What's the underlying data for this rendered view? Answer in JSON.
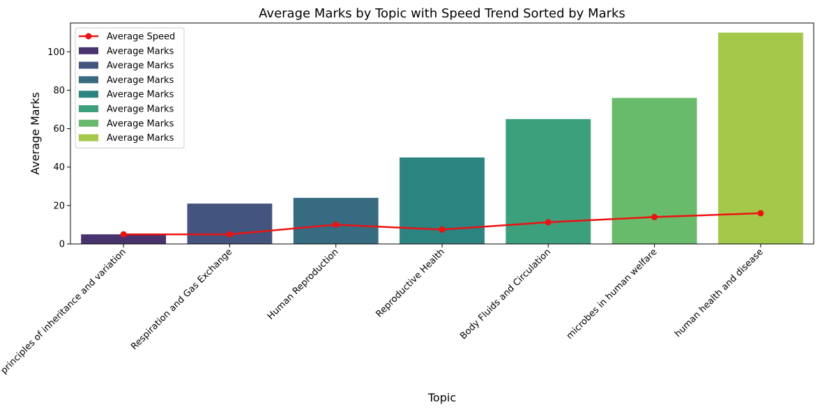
{
  "chart_data": {
    "type": "bar",
    "title": "Average Marks by Topic with Speed Trend Sorted by Marks",
    "xlabel": "Topic",
    "ylabel": "Average Marks",
    "ylim": [
      0,
      115
    ],
    "yticks": [
      0,
      20,
      40,
      60,
      80,
      100
    ],
    "categories": [
      "principles of inheritance and variation",
      "Respiration and Gas Exchange",
      "Human Reproduction",
      "Reproductive Health",
      "Body Fluids and Circulation",
      "microbes in human welfare",
      "human health and disease"
    ],
    "series": [
      {
        "name": "Average Marks",
        "kind": "bar",
        "values": [
          5,
          21,
          24,
          45,
          65,
          76,
          110
        ],
        "colors": [
          "#48336f",
          "#43547f",
          "#376b82",
          "#2b847f",
          "#3ba07b",
          "#68bb6b",
          "#a3c84a"
        ]
      },
      {
        "name": "Average Speed",
        "kind": "line",
        "color": "#ee1111",
        "values": [
          5,
          5,
          10,
          7.5,
          11.3,
          14,
          16
        ]
      }
    ],
    "legend": {
      "position": "top-left",
      "entries": [
        {
          "label": "Average Speed",
          "color": "#ee1111",
          "marker": "line-dot"
        },
        {
          "label": "Average Marks",
          "color": "#48336f",
          "marker": "patch"
        },
        {
          "label": "Average Marks",
          "color": "#43547f",
          "marker": "patch"
        },
        {
          "label": "Average Marks",
          "color": "#376b82",
          "marker": "patch"
        },
        {
          "label": "Average Marks",
          "color": "#2b847f",
          "marker": "patch"
        },
        {
          "label": "Average Marks",
          "color": "#3ba07b",
          "marker": "patch"
        },
        {
          "label": "Average Marks",
          "color": "#68bb6b",
          "marker": "patch"
        },
        {
          "label": "Average Marks",
          "color": "#a3c84a",
          "marker": "patch"
        }
      ]
    },
    "grid": false
  }
}
